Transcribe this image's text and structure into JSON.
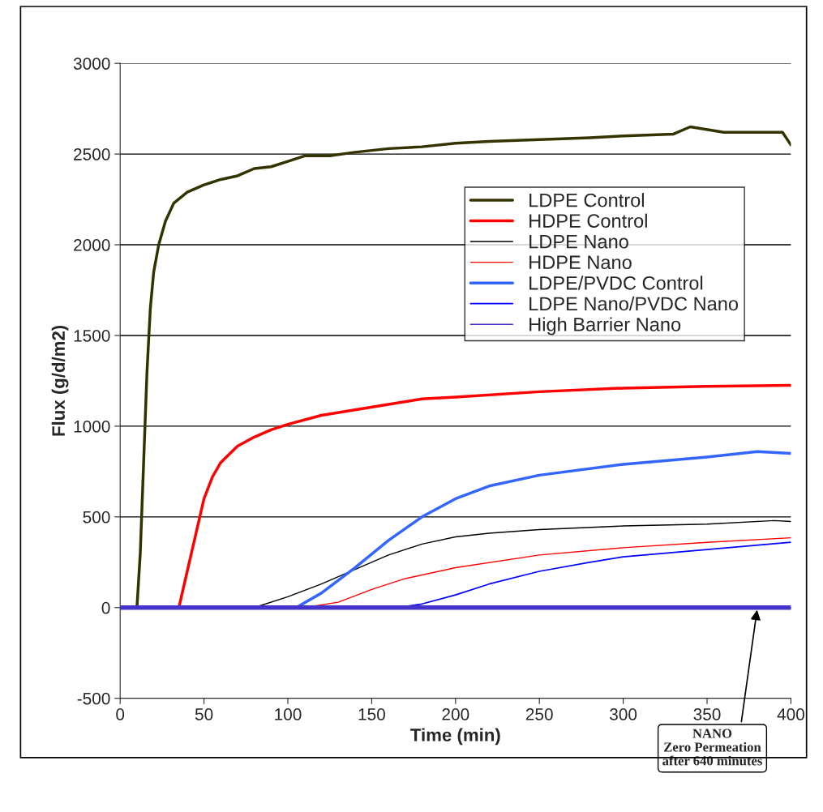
{
  "chart_data": {
    "type": "line",
    "xlabel": "Time (min)",
    "ylabel": "Flux (g/d/m2)",
    "xlim": [
      0,
      400
    ],
    "xticks": [
      0,
      50,
      100,
      150,
      200,
      250,
      300,
      350,
      400
    ],
    "ylim": [
      -500,
      3000
    ],
    "yticks": [
      -500,
      0,
      500,
      1000,
      1500,
      2000,
      2500,
      3000
    ],
    "grid": "y",
    "legend": "top right",
    "marker": "none",
    "line_style": "solid",
    "series": [
      {
        "name": "LDPE Control",
        "color": "#333300",
        "x": [
          0,
          8,
          10,
          12,
          14,
          16,
          18,
          20,
          23,
          27,
          32,
          40,
          50,
          60,
          70,
          80,
          90,
          100,
          110,
          125,
          140,
          160,
          180,
          200,
          220,
          250,
          280,
          300,
          330,
          340,
          360,
          380,
          395,
          400
        ],
        "values": [
          0,
          0,
          0,
          300,
          800,
          1300,
          1650,
          1850,
          2000,
          2130,
          2230,
          2290,
          2330,
          2360,
          2380,
          2420,
          2430,
          2460,
          2490,
          2490,
          2510,
          2530,
          2540,
          2560,
          2570,
          2580,
          2590,
          2600,
          2610,
          2650,
          2620,
          2620,
          2620,
          2550
        ]
      },
      {
        "name": "HDPE Control",
        "color": "#ff0000",
        "x": [
          0,
          35,
          40,
          45,
          50,
          55,
          60,
          70,
          80,
          90,
          100,
          120,
          140,
          160,
          180,
          200,
          250,
          300,
          350,
          400
        ],
        "values": [
          0,
          0,
          200,
          400,
          600,
          720,
          800,
          890,
          940,
          980,
          1010,
          1060,
          1090,
          1120,
          1150,
          1160,
          1190,
          1210,
          1220,
          1225
        ]
      },
      {
        "name": "LDPE Nano",
        "color": "#000000",
        "x": [
          0,
          80,
          100,
          120,
          160,
          180,
          200,
          220,
          250,
          300,
          350,
          390,
          400
        ],
        "values": [
          0,
          0,
          60,
          130,
          290,
          350,
          390,
          410,
          430,
          450,
          460,
          480,
          475
        ]
      },
      {
        "name": "HDPE Nano",
        "color": "#ff0000",
        "x": [
          0,
          110,
          130,
          150,
          170,
          200,
          250,
          300,
          350,
          400
        ],
        "values": [
          0,
          0,
          30,
          100,
          160,
          220,
          290,
          330,
          360,
          385
        ]
      },
      {
        "name": "LDPE/PVDC Control",
        "color": "#3366ff",
        "x": [
          0,
          105,
          120,
          140,
          160,
          180,
          200,
          220,
          250,
          300,
          350,
          380,
          400
        ],
        "values": [
          0,
          0,
          80,
          220,
          370,
          500,
          600,
          670,
          730,
          790,
          830,
          860,
          850
        ]
      },
      {
        "name": "LDPE Nano/PVDC Nano",
        "color": "#0000ff",
        "x": [
          0,
          165,
          180,
          200,
          220,
          250,
          280,
          300,
          350,
          400
        ],
        "values": [
          0,
          0,
          20,
          70,
          130,
          200,
          250,
          280,
          320,
          360
        ]
      },
      {
        "name": "High Barrier Nano",
        "color": "#4433cc",
        "x": [
          0,
          400
        ],
        "values": [
          0,
          0
        ]
      }
    ],
    "annotations": [
      {
        "text": "NANO\nZero Permeation\nafter 640 minutes",
        "x": 380,
        "y": 0
      }
    ]
  }
}
